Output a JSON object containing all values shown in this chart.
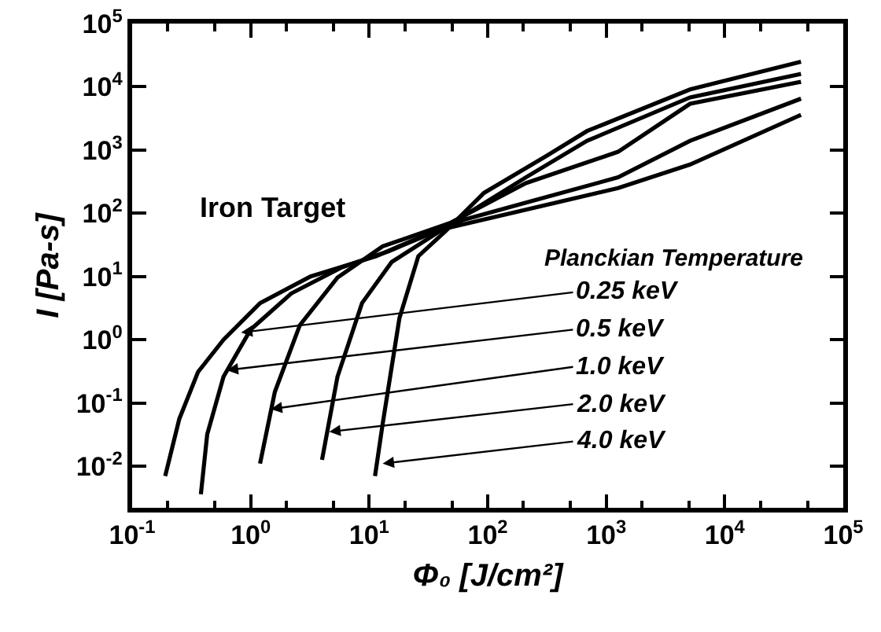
{
  "chart_data": {
    "type": "line",
    "xlabel": "Φ₀ [J/cm²]",
    "ylabel": "I [Pa-s]",
    "log": "xy",
    "xlim": [
      0.1,
      100000
    ],
    "ylim": [
      0.0022,
      100000
    ],
    "xticks": [
      {
        "value": 0.1,
        "label": "10$^{-1}$"
      },
      {
        "value": 1,
        "label": "10$^{0}$"
      },
      {
        "value": 10,
        "label": "10$^{1}$"
      },
      {
        "value": 100,
        "label": "10$^{2}$"
      },
      {
        "value": 1000,
        "label": "10$^{3}$"
      },
      {
        "value": 10000,
        "label": "10$^{4}$"
      },
      {
        "value": 100000,
        "label": "10$^{5}$"
      }
    ],
    "yticks": [
      {
        "value": 0.01,
        "label": "10$^{-2}$"
      },
      {
        "value": 0.1,
        "label": "10$^{-1}$"
      },
      {
        "value": 1,
        "label": "10$^{0}$"
      },
      {
        "value": 10,
        "label": "10$^{1}$"
      },
      {
        "value": 100,
        "label": "10$^{2}$"
      },
      {
        "value": 1000,
        "label": "10$^{3}$"
      },
      {
        "value": 10000,
        "label": "10$^{4}$"
      },
      {
        "value": 100000,
        "label": "10$^{5}$"
      }
    ],
    "grid": false,
    "marker": "none",
    "line_style": "solid",
    "series": [
      {
        "color": "#000000",
        "x": [
          0.19,
          0.25,
          0.36,
          0.59,
          1.2,
          3.2,
          11.5,
          35,
          1260,
          5100,
          44000
        ],
        "values": [
          0.007,
          0.056,
          0.31,
          1,
          3.8,
          10,
          21,
          52,
          250,
          590,
          3600
        ]
      },
      {
        "color": "#000000",
        "x": [
          0.38,
          0.43,
          0.59,
          1,
          2.2,
          5.9,
          14.5,
          64,
          1260,
          5100,
          44000
        ],
        "values": [
          0.0036,
          0.032,
          0.26,
          1.45,
          5.4,
          14,
          25,
          80,
          370,
          1400,
          6500
        ]
      },
      {
        "color": "#000000",
        "x": [
          1.2,
          1.6,
          2.6,
          5.4,
          13,
          48,
          210,
          1260,
          5100,
          44000
        ],
        "values": [
          0.011,
          0.15,
          1.7,
          9.6,
          30,
          70,
          300,
          940,
          5400,
          12000
        ]
      },
      {
        "color": "#000000",
        "x": [
          4,
          5.4,
          8.7,
          15.5,
          64,
          210,
          690,
          5100,
          44000
        ],
        "values": [
          0.0126,
          0.26,
          3.8,
          17,
          93,
          370,
          1400,
          6800,
          16000
        ]
      },
      {
        "color": "#000000",
        "x": [
          11.2,
          13,
          18,
          26,
          44,
          93,
          310,
          690,
          5100,
          44000
        ],
        "values": [
          0.007,
          0.047,
          2.2,
          21,
          52,
          210,
          800,
          2000,
          9100,
          25000
        ]
      }
    ],
    "annotations": [
      "Iron Target",
      "Planckian Temperature",
      {
        "text": "0.25 keV",
        "x": 0.83,
        "y": 1.3
      },
      {
        "text": "0.5 keV",
        "x": 0.63,
        "y": 0.33
      },
      {
        "text": "1.0 keV",
        "x": 1.48,
        "y": 0.08
      },
      {
        "text": "2.0 keV",
        "x": 4.6,
        "y": 0.035
      },
      {
        "text": "4.0 keV",
        "x": 13,
        "y": 0.011
      }
    ]
  }
}
